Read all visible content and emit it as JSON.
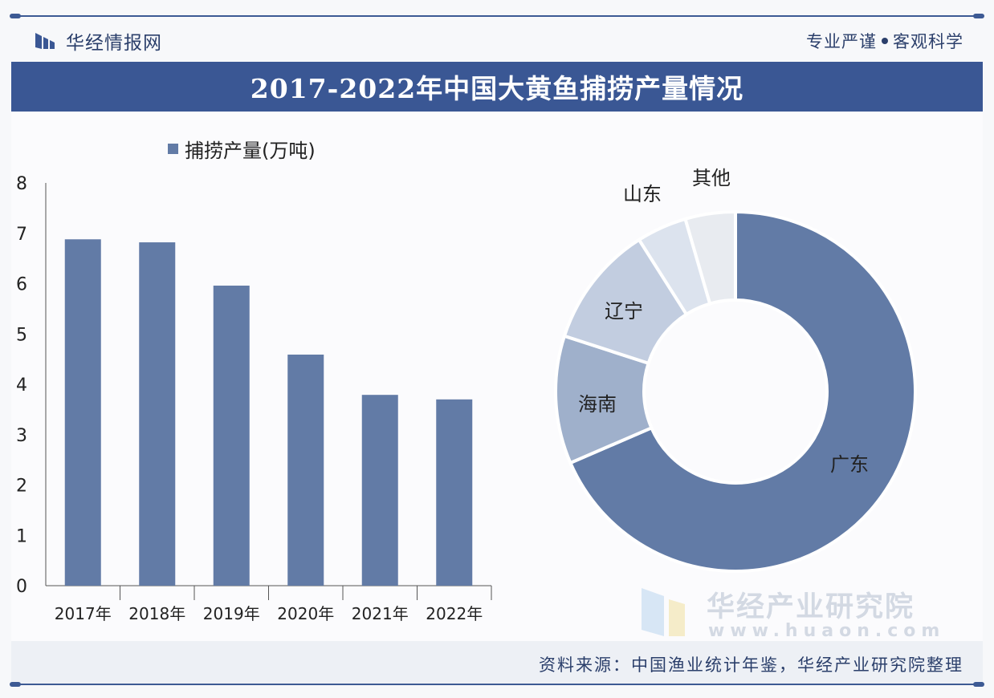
{
  "header": {
    "brand": "华经情报网",
    "slogan_left": "专业严谨",
    "slogan_right": "客观科学"
  },
  "title": "2017-2022年中国大黄鱼捕捞产量情况",
  "legend": {
    "label": "捕捞产量(万吨)"
  },
  "watermark": {
    "name": "华经产业研究院",
    "url": "www.huaon.com"
  },
  "footer": {
    "source": "资料来源：中国渔业统计年鉴，华经产业研究院整理"
  },
  "colors": {
    "bar": "#627ba6",
    "pie": [
      "#627ba6",
      "#9fb0cb",
      "#c2cde0",
      "#dce3ee",
      "#e8ebf0"
    ]
  },
  "chart_data": [
    {
      "type": "bar",
      "title": "2017-2022年中国大黄鱼捕捞产量情况",
      "categories": [
        "2017年",
        "2018年",
        "2019年",
        "2020年",
        "2021年",
        "2022年"
      ],
      "series": [
        {
          "name": "捕捞产量(万吨)",
          "values": [
            6.88,
            6.82,
            5.96,
            4.59,
            3.79,
            3.7
          ]
        }
      ],
      "ylim": [
        0,
        8
      ],
      "yticks": [
        0,
        1,
        2,
        3,
        4,
        5,
        6,
        7,
        8
      ],
      "xlabel": "",
      "ylabel": "",
      "grid": false,
      "legend": "top-left"
    },
    {
      "type": "pie",
      "donut": true,
      "labels": [
        "广东",
        "海南",
        "辽宁",
        "山东",
        "其他"
      ],
      "values": [
        68.5,
        11.5,
        11.0,
        4.5,
        4.5
      ]
    }
  ]
}
